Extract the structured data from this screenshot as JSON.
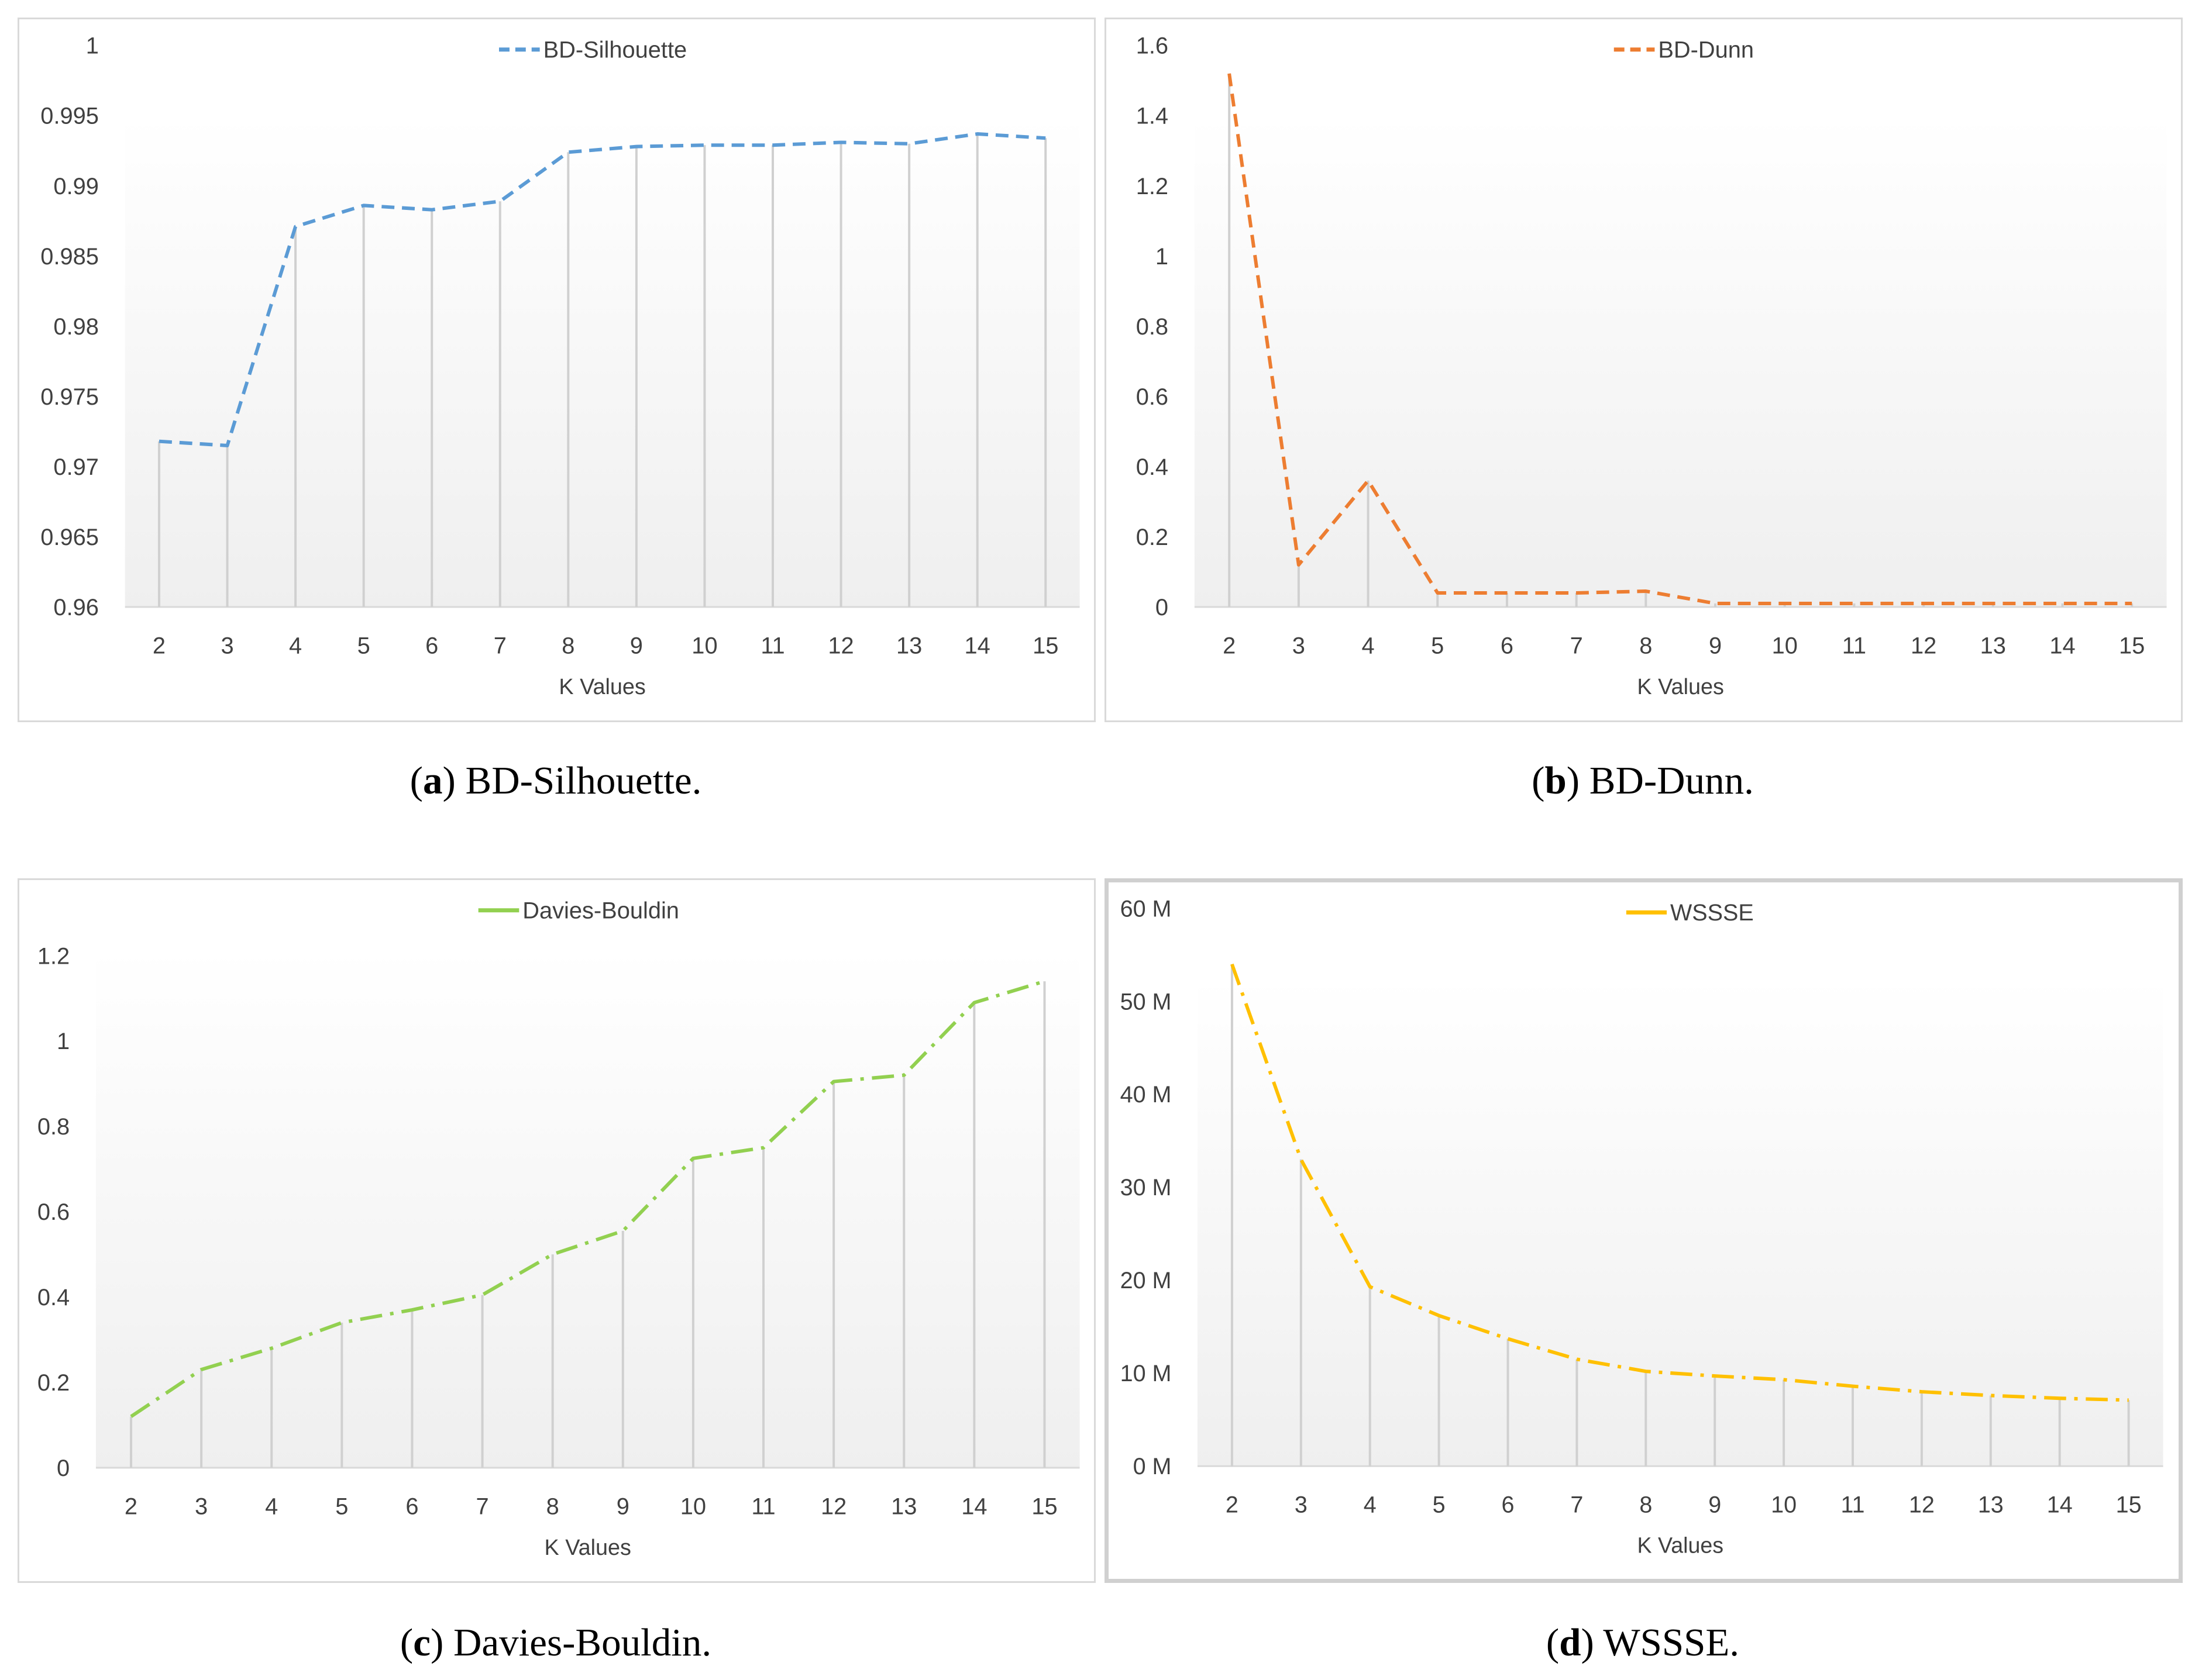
{
  "charts": [
    {
      "id": "a",
      "caption_letter": "a",
      "caption_text": "BD-Silhouette.",
      "chart_data": {
        "type": "line",
        "title": "",
        "legend": "BD-Silhouette",
        "legend_placement": "top-center",
        "xlabel": "K Values",
        "ylabel": "",
        "categories": [
          "2",
          "3",
          "4",
          "5",
          "6",
          "7",
          "8",
          "9",
          "10",
          "11",
          "12",
          "13",
          "14",
          "15"
        ],
        "series": [
          {
            "name": "BD-Silhouette",
            "color": "#5b9bd5",
            "dash": "dashed",
            "values": [
              0.9718,
              0.9715,
              0.9871,
              0.9886,
              0.9883,
              0.9889,
              0.9924,
              0.9928,
              0.9929,
              0.9929,
              0.9931,
              0.993,
              0.9937,
              0.9934
            ]
          }
        ],
        "ylim": [
          0.96,
          1.0
        ],
        "yticks": [
          0.96,
          0.965,
          0.97,
          0.975,
          0.98,
          0.985,
          0.99,
          0.995,
          1
        ],
        "ytick_labels": [
          "0.96",
          "0.965",
          "0.97",
          "0.975",
          "0.98",
          "0.985",
          "0.99",
          "0.995",
          "1"
        ],
        "drop_lines": true,
        "grid": false
      }
    },
    {
      "id": "b",
      "caption_letter": "b",
      "caption_text": "BD-Dunn.",
      "chart_data": {
        "type": "line",
        "title": "",
        "legend": "BD-Dunn",
        "legend_placement": "top-center",
        "xlabel": "K Values",
        "ylabel": "",
        "categories": [
          "2",
          "3",
          "4",
          "5",
          "6",
          "7",
          "8",
          "9",
          "10",
          "11",
          "12",
          "13",
          "14",
          "15"
        ],
        "series": [
          {
            "name": "BD-Dunn",
            "color": "#ed7d31",
            "dash": "dashed",
            "values": [
              1.52,
              0.12,
              0.36,
              0.04,
              0.04,
              0.04,
              0.045,
              0.01,
              0.01,
              0.01,
              0.01,
              0.01,
              0.01,
              0.01
            ]
          }
        ],
        "ylim": [
          0,
          1.6
        ],
        "yticks": [
          0,
          0.2,
          0.4,
          0.6,
          0.8,
          1,
          1.2,
          1.4,
          1.6
        ],
        "ytick_labels": [
          "0",
          "0.2",
          "0.4",
          "0.6",
          "0.8",
          "1",
          "1.2",
          "1.4",
          "1.6"
        ],
        "drop_lines": true,
        "grid": false
      }
    },
    {
      "id": "c",
      "caption_letter": "c",
      "caption_text": "Davies-Bouldin.",
      "chart_data": {
        "type": "line",
        "title": "",
        "legend": "Davies-Bouldin",
        "legend_placement": "top-center",
        "xlabel": "K Values",
        "ylabel": "",
        "categories": [
          "2",
          "3",
          "4",
          "5",
          "6",
          "7",
          "8",
          "9",
          "10",
          "11",
          "12",
          "13",
          "14",
          "15"
        ],
        "series": [
          {
            "name": "Davies-Bouldin",
            "color": "#92d050",
            "dash": "dashdot",
            "values": [
              0.12,
              0.23,
              0.28,
              0.34,
              0.37,
              0.405,
              0.5,
              0.555,
              0.725,
              0.75,
              0.905,
              0.92,
              1.09,
              1.14
            ]
          }
        ],
        "ylim": [
          0,
          1.2
        ],
        "yticks": [
          0,
          0.2,
          0.4,
          0.6,
          0.8,
          1,
          1.2
        ],
        "ytick_labels": [
          "0",
          "0.2",
          "0.4",
          "0.6",
          "0.8",
          "1",
          "1.2"
        ],
        "drop_lines": true,
        "grid": false
      }
    },
    {
      "id": "d",
      "caption_letter": "d",
      "caption_text": "WSSSE.",
      "chart_data": {
        "type": "line",
        "title": "",
        "legend": "WSSSE",
        "legend_placement": "top-center",
        "xlabel": "K Values",
        "ylabel": "",
        "categories": [
          "2",
          "3",
          "4",
          "5",
          "6",
          "7",
          "8",
          "9",
          "10",
          "11",
          "12",
          "13",
          "14",
          "15"
        ],
        "series": [
          {
            "name": "WSSSE",
            "color": "#ffc000",
            "dash": "dashdot",
            "values": [
              54000000,
              33000000,
              19300000,
              16200000,
              13700000,
              11500000,
              10200000,
              9700000,
              9300000,
              8600000,
              8000000,
              7600000,
              7300000,
              7100000
            ]
          }
        ],
        "ylim": [
          0,
          60000000
        ],
        "yticks": [
          0,
          10000000,
          20000000,
          30000000,
          40000000,
          50000000,
          60000000
        ],
        "ytick_labels": [
          "0 M",
          "10 M",
          "20 M",
          "30 M",
          "40 M",
          "50 M",
          "60 M"
        ],
        "drop_lines": true,
        "grid": false
      }
    }
  ]
}
